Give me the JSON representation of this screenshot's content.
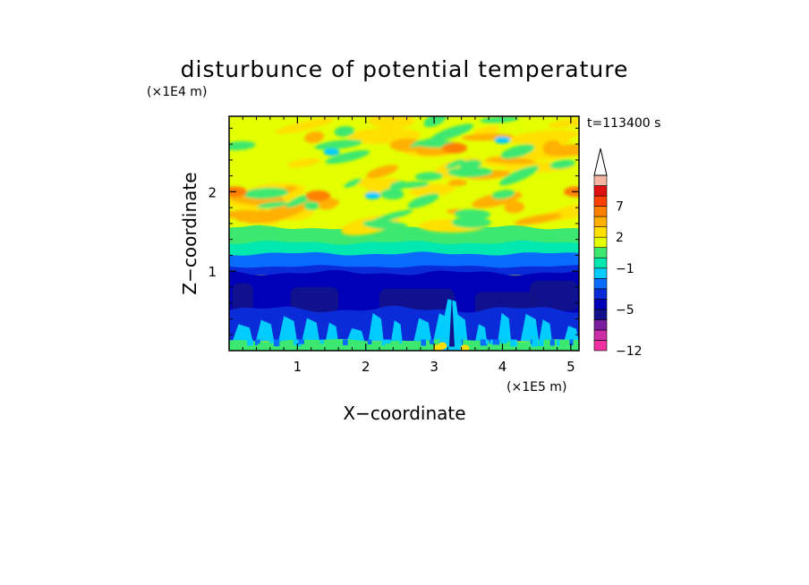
{
  "chart_data": {
    "type": "heatmap",
    "title": "disturbunce of potential temperature",
    "time_label": "t=113400 s",
    "x": {
      "label": "X−coordinate",
      "scale_label": "(×1E5 m)",
      "range": [
        0,
        5.12
      ],
      "ticks": [
        "1",
        "2",
        "3",
        "4",
        "5"
      ],
      "tick_values": [
        1,
        2,
        3,
        4,
        5
      ]
    },
    "y": {
      "label": "Z−coordinate",
      "scale_label": "(×1E4 m)",
      "range": [
        0,
        2.95
      ],
      "ticks": [
        "1",
        "2"
      ],
      "tick_values": [
        1,
        2
      ]
    },
    "colorbar": {
      "levels": [
        -12,
        -11,
        -9,
        -7,
        -5,
        -4,
        -3,
        -2,
        -1,
        0,
        1,
        2,
        3,
        5,
        7,
        9,
        11,
        13
      ],
      "colors": [
        "#ee30a0",
        "#cc2ea8",
        "#7a1fa0",
        "#12138a",
        "#0000b8",
        "#0a2cd8",
        "#0a6cff",
        "#00ccff",
        "#00e8b0",
        "#3ce870",
        "#e4ff00",
        "#ffe000",
        "#ffb000",
        "#ff8000",
        "#ff4000",
        "#e01010",
        "#f4b6a0"
      ],
      "labels": [
        "−12",
        "−5",
        "−1",
        "2",
        "7"
      ],
      "label_values": [
        -12,
        -5,
        -1,
        2,
        7
      ],
      "extend": "max"
    },
    "field_description_bands": [
      {
        "z_range": [
          0,
          0.1
        ],
        "value_range": [
          -3,
          2
        ]
      },
      {
        "z_range": [
          0.1,
          0.5
        ],
        "value_range": [
          -5,
          0
        ]
      },
      {
        "z_range": [
          0.5,
          1.0
        ],
        "value_range": [
          -7,
          -4
        ]
      },
      {
        "z_range": [
          1.0,
          1.2
        ],
        "value_range": [
          -4,
          -1
        ]
      },
      {
        "z_range": [
          1.2,
          1.45
        ],
        "value_range": [
          -1,
          1
        ]
      },
      {
        "z_range": [
          1.45,
          2.95
        ],
        "value_range": [
          0,
          3
        ]
      }
    ]
  }
}
